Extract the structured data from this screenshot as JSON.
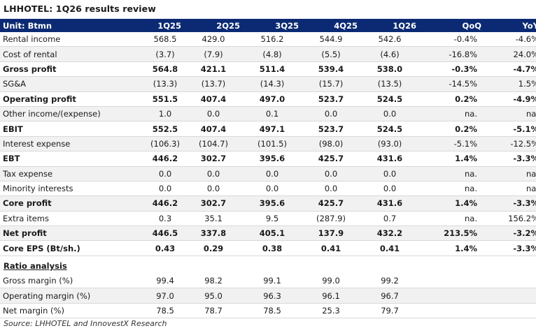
{
  "title": "LHHOTEL: 1Q26 results review",
  "header": [
    "Unit: Btmn",
    "1Q25",
    "2Q25",
    "3Q25",
    "4Q25",
    "1Q26",
    "QoQ",
    "YoY"
  ],
  "rows": [
    {
      "label": "Rental income",
      "values": [
        "568.5",
        "429.0",
        "516.2",
        "544.9",
        "542.6",
        "-0.4%",
        "-4.6%"
      ],
      "bold": false
    },
    {
      "label": "Cost of rental",
      "values": [
        "(3.7)",
        "(7.9)",
        "(4.8)",
        "(5.5)",
        "(4.6)",
        "-16.8%",
        "24.0%"
      ],
      "bold": false
    },
    {
      "label": "Gross profit",
      "values": [
        "564.8",
        "421.1",
        "511.4",
        "539.4",
        "538.0",
        "-0.3%",
        "-4.7%"
      ],
      "bold": true
    },
    {
      "label": "SG&A",
      "values": [
        "(13.3)",
        "(13.7)",
        "(14.3)",
        "(15.7)",
        "(13.5)",
        "-14.5%",
        "1.5%"
      ],
      "bold": false
    },
    {
      "label": "Operating profit",
      "values": [
        "551.5",
        "407.4",
        "497.0",
        "523.7",
        "524.5",
        "0.2%",
        "-4.9%"
      ],
      "bold": true
    },
    {
      "label": "Other income/(expense)",
      "values": [
        "1.0",
        "0.0",
        "0.1",
        "0.0",
        "0.0",
        "na.",
        "na."
      ],
      "bold": false
    },
    {
      "label": "EBIT",
      "values": [
        "552.5",
        "407.4",
        "497.1",
        "523.7",
        "524.5",
        "0.2%",
        "-5.1%"
      ],
      "bold": true
    },
    {
      "label": "Interest expense",
      "values": [
        "(106.3)",
        "(104.7)",
        "(101.5)",
        "(98.0)",
        "(93.0)",
        "-5.1%",
        "-12.5%"
      ],
      "bold": false
    },
    {
      "label": "EBT",
      "values": [
        "446.2",
        "302.7",
        "395.6",
        "425.7",
        "431.6",
        "1.4%",
        "-3.3%"
      ],
      "bold": true
    },
    {
      "label": "Tax expense",
      "values": [
        "0.0",
        "0.0",
        "0.0",
        "0.0",
        "0.0",
        "na.",
        "na."
      ],
      "bold": false
    },
    {
      "label": "Minority interests",
      "values": [
        "0.0",
        "0.0",
        "0.0",
        "0.0",
        "0.0",
        "na.",
        "na."
      ],
      "bold": false
    },
    {
      "label": "Core profit",
      "values": [
        "446.2",
        "302.7",
        "395.6",
        "425.7",
        "431.6",
        "1.4%",
        "-3.3%"
      ],
      "bold": true
    },
    {
      "label": "Extra items",
      "values": [
        "0.3",
        "35.1",
        "9.5",
        "(287.9)",
        "0.7",
        "na.",
        "156.2%"
      ],
      "bold": false
    },
    {
      "label": "Net profit",
      "values": [
        "446.5",
        "337.8",
        "405.1",
        "137.9",
        "432.2",
        "213.5%",
        "-3.2%"
      ],
      "bold": true
    },
    {
      "label": "Core EPS (Bt/sh.)",
      "values": [
        "0.43",
        "0.29",
        "0.38",
        "0.41",
        "0.41",
        "1.4%",
        "-3.3%"
      ],
      "bold": true
    }
  ],
  "ratio_title": "Ratio analysis",
  "ratios": [
    {
      "label": "Gross margin (%)",
      "values": [
        "99.4",
        "98.2",
        "99.1",
        "99.0",
        "99.2",
        "",
        ""
      ]
    },
    {
      "label": "Operating margin (%)",
      "values": [
        "97.0",
        "95.0",
        "96.3",
        "96.1",
        "96.7",
        "",
        ""
      ]
    },
    {
      "label": "Net margin (%)",
      "values": [
        "78.5",
        "78.7",
        "78.5",
        "25.3",
        "79.7",
        "",
        ""
      ]
    }
  ],
  "source": "Source: LHHOTEL and InnovestX Research"
}
